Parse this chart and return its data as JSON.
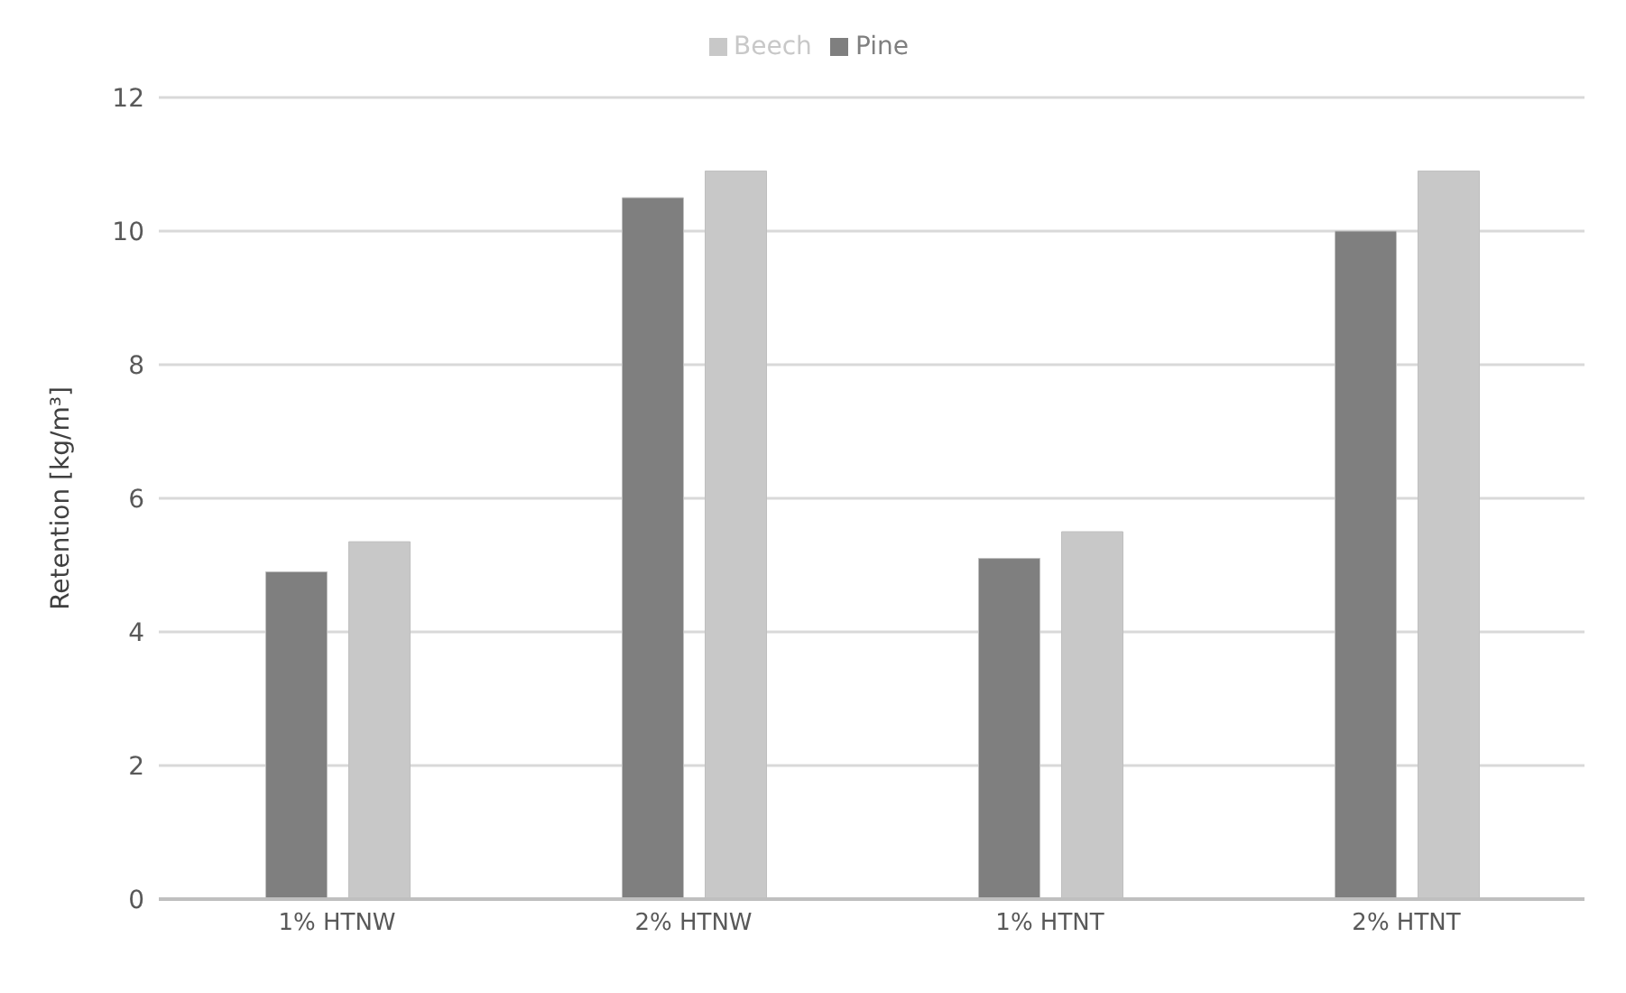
{
  "chart_data": {
    "type": "bar",
    "ylabel": "Retention [kg/m³]",
    "categories": [
      "1% HTNW",
      "2% HTNW",
      "1% HTNT",
      "2% HTNT"
    ],
    "series": [
      {
        "name": "Pine",
        "color": "#7f7f7f",
        "values": [
          4.9,
          10.5,
          5.1,
          10.0
        ]
      },
      {
        "name": "Beech",
        "color": "#c8c8c8",
        "values": [
          5.35,
          10.9,
          5.5,
          10.9
        ]
      }
    ],
    "ylim": [
      0,
      12
    ],
    "yticks": [
      0,
      2,
      4,
      6,
      8,
      10,
      12
    ],
    "grid": "y",
    "legend": "top"
  }
}
